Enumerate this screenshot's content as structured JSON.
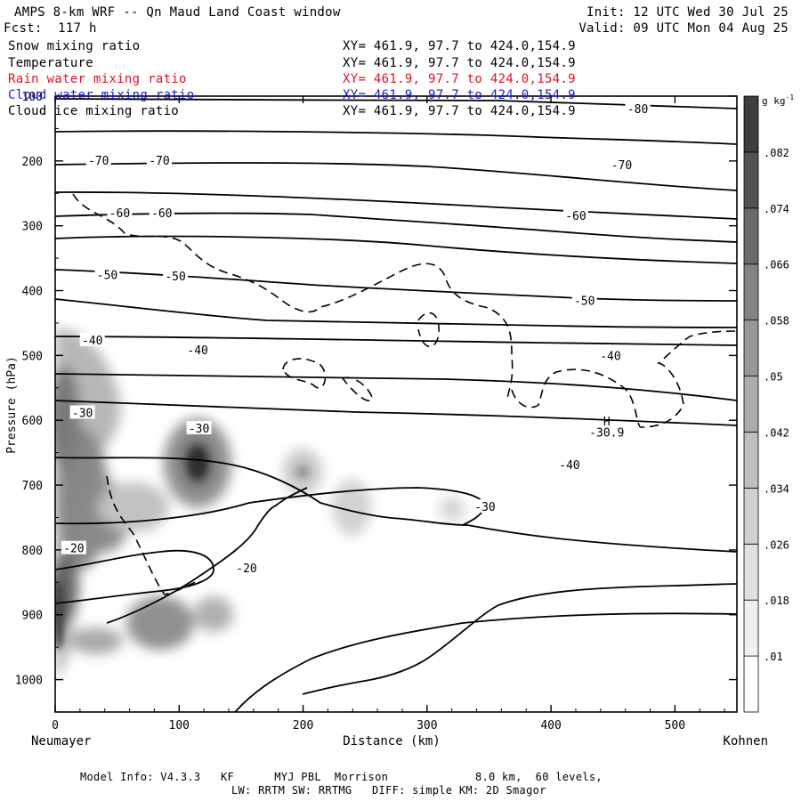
{
  "header": {
    "title": "AMPS 8-km WRF -- Qn Maud Land Coast window",
    "init": "Init: 12 UTC Wed 30 Jul 25",
    "forecast": "Fcst:  117 h",
    "valid": "Valid: 09 UTC Mon 04 Aug 25"
  },
  "fields": [
    {
      "name": "Snow mixing ratio",
      "xy": "XY= 461.9, 97.7 to 424.0,154.9",
      "color": "#000000"
    },
    {
      "name": "Temperature",
      "xy": "XY= 461.9, 97.7 to 424.0,154.9",
      "color": "#000000"
    },
    {
      "name": "Rain water mixing ratio",
      "xy": "XY= 461.9, 97.7 to 424.0,154.9",
      "color": "#e0102a"
    },
    {
      "name": "Cloud water mixing ratio",
      "xy": "XY= 461.9, 97.7 to 424.0,154.9",
      "color": "#1a1ad0"
    },
    {
      "name": "Cloud ice mixing ratio",
      "xy": "XY= 461.9, 97.7 to 424.0,154.9",
      "color": "#000000"
    }
  ],
  "footer": {
    "line1": "Model Info: V4.3.3   KF      MYJ PBL  Morrison             8.0 km,  60 levels,",
    "line2": "LW: RRTM SW: RRTMG   DIFF: simple KM: 2D Smagor"
  },
  "chart_data": {
    "type": "cross-section contour",
    "xlabel": "Distance (km)",
    "ylabel": "Pressure (hPa)",
    "x_ticks": [
      0,
      100,
      200,
      300,
      400,
      500
    ],
    "xlim": [
      0,
      550
    ],
    "y_ticks": [
      100,
      200,
      300,
      400,
      500,
      600,
      700,
      800,
      900,
      1000
    ],
    "ylim": [
      1050,
      100
    ],
    "left_end_label": "Neumayer",
    "right_end_label": "Kohnen",
    "colorbar": {
      "unit": "g kg",
      "unit_sup": "-1",
      "levels": [
        ".01",
        ".018",
        ".026",
        ".034",
        ".042",
        ".05",
        ".058",
        ".066",
        ".074",
        ".082"
      ],
      "colors": [
        "#ffffff",
        "#f0f0f0",
        "#e1e1e1",
        "#d0d0d0",
        "#bfbfbf",
        "#acacac",
        "#989898",
        "#838383",
        "#6b6b6b",
        "#525252",
        "#3d3d3d"
      ]
    },
    "temperature_contours": [
      {
        "label": "-80",
        "points": [
          [
            0,
            115
          ],
          [
            150,
            117
          ],
          [
            300,
            117
          ],
          [
            450,
            118
          ],
          [
            550,
            120
          ]
        ],
        "label_at": [
          [
            470,
            119
          ]
        ]
      },
      {
        "label": "-70",
        "points": [
          [
            0,
            200
          ],
          [
            100,
            198
          ],
          [
            200,
            192
          ],
          [
            300,
            188
          ],
          [
            400,
            193
          ],
          [
            550,
            203
          ]
        ],
        "label_at": [
          [
            35,
            199
          ],
          [
            84,
            199
          ],
          [
            457,
            206
          ]
        ]
      },
      {
        "label": "-60",
        "points": [
          [
            0,
            280
          ],
          [
            150,
            272
          ],
          [
            300,
            272
          ],
          [
            420,
            284
          ],
          [
            550,
            290
          ]
        ],
        "label_at": [
          [
            52,
            280
          ],
          [
            86,
            280
          ],
          [
            420,
            284
          ]
        ]
      },
      {
        "label": "-50",
        "points": [
          [
            0,
            368
          ],
          [
            100,
            375
          ],
          [
            200,
            392
          ],
          [
            300,
            406
          ],
          [
            420,
            415
          ],
          [
            550,
            415
          ]
        ],
        "label_at": [
          [
            42,
            375
          ],
          [
            97,
            377
          ],
          [
            427,
            415
          ]
        ]
      },
      {
        "label": "-40",
        "points": [
          [
            0,
            470
          ],
          [
            100,
            488
          ],
          [
            200,
            490
          ],
          [
            320,
            487
          ],
          [
            430,
            492
          ],
          [
            550,
            502
          ]
        ],
        "label_at": [
          [
            30,
            476
          ],
          [
            115,
            491
          ],
          [
            448,
            500
          ]
        ]
      },
      {
        "label": "-30",
        "points": [
          [
            0,
            587
          ],
          [
            100,
            610
          ],
          [
            200,
            590
          ],
          [
            300,
            594
          ],
          [
            400,
            600
          ],
          [
            480,
            614
          ],
          [
            550,
            622
          ]
        ],
        "label_at": [
          [
            22,
            588
          ],
          [
            116,
            612
          ]
        ]
      },
      {
        "label": "-20",
        "points": [
          [
            0,
            790
          ],
          [
            60,
            778
          ],
          [
            120,
            770
          ],
          [
            170,
            781
          ],
          [
            120,
            835
          ],
          [
            60,
            910
          ],
          [
            0,
            912
          ]
        ],
        "label_at": [
          [
            15,
            797
          ],
          [
            153,
            829
          ]
        ]
      }
    ],
    "annotations": [
      {
        "text": "H",
        "x": 445,
        "y": 608
      },
      {
        "text": "-30.9",
        "x": 445,
        "y": 625
      }
    ]
  }
}
